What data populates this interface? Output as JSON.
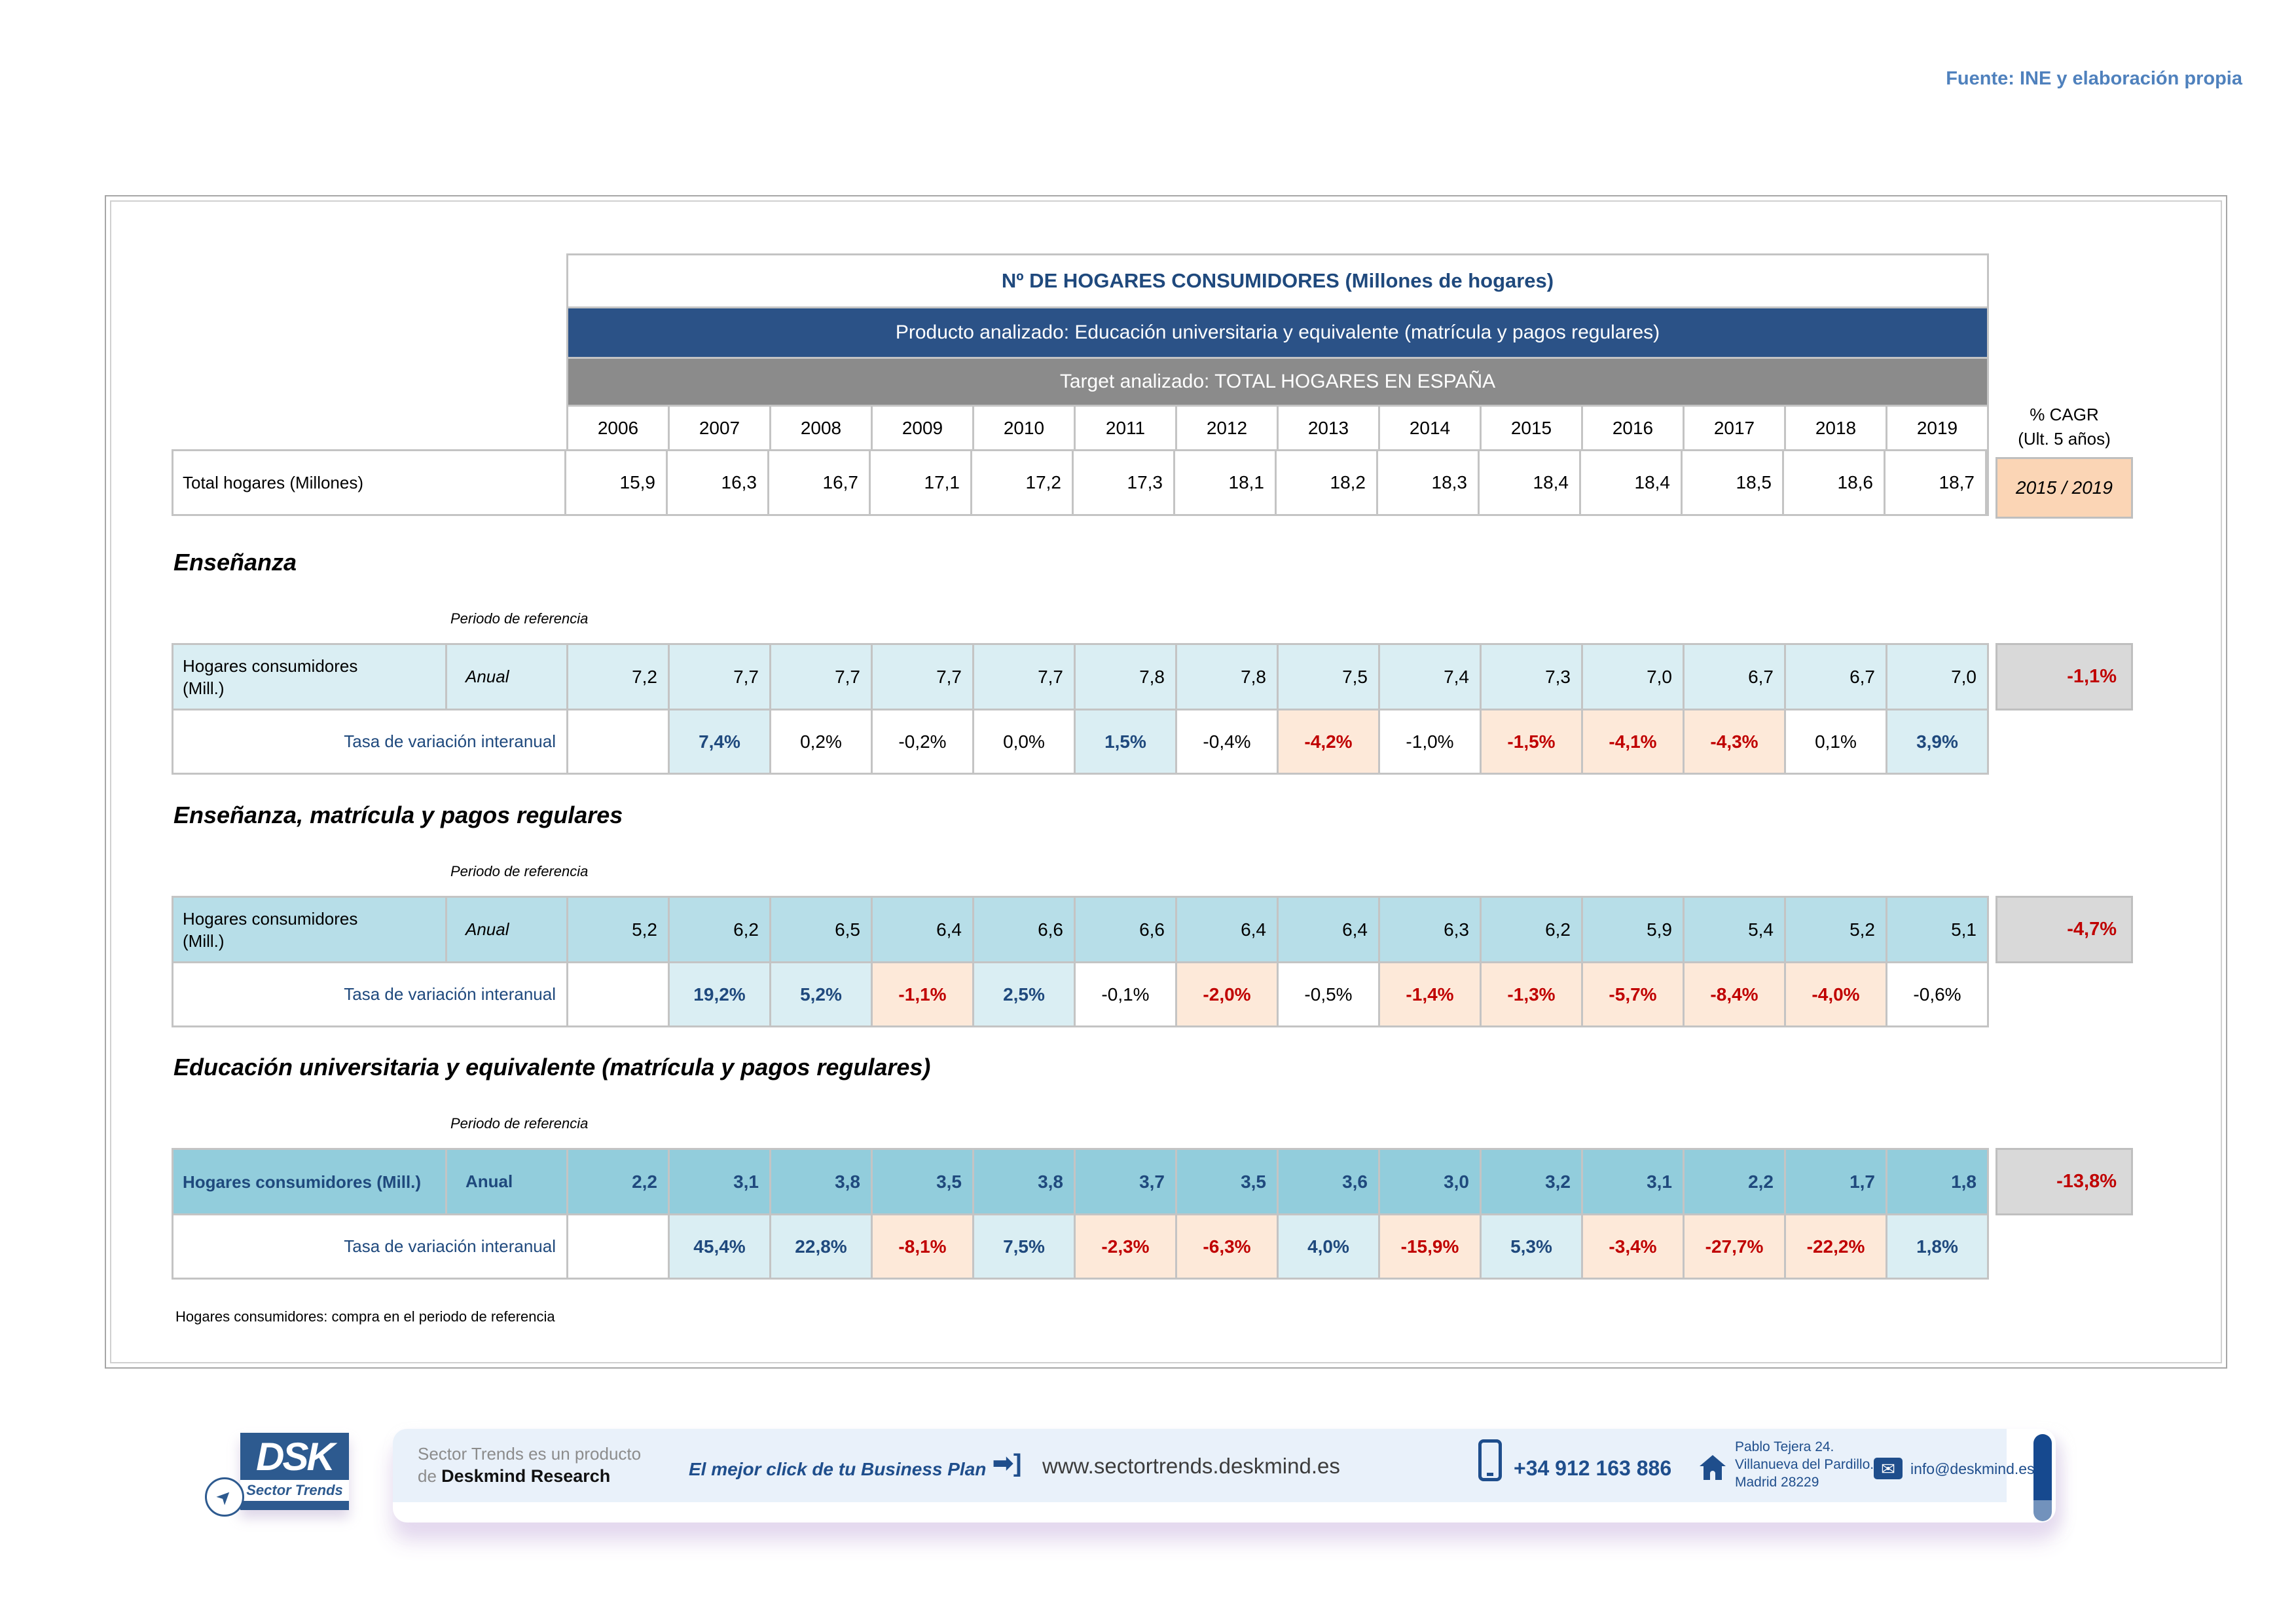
{
  "source_note": "Fuente: INE y elaboración propia",
  "header": {
    "title": "Nº DE HOGARES CONSUMIDORES (Millones de hogares)",
    "product_line": "Producto analizado: Educación universitaria y equivalente  (matrícula y pagos regulares)",
    "target_line": "Target analizado: TOTAL HOGARES EN ESPAÑA",
    "years": [
      "2006",
      "2007",
      "2008",
      "2009",
      "2010",
      "2011",
      "2012",
      "2013",
      "2014",
      "2015",
      "2016",
      "2017",
      "2018",
      "2019"
    ],
    "cagr_label_line1": "% CAGR",
    "cagr_label_line2": "(Ult. 5 años)",
    "cagr_period": "2015 / 2019"
  },
  "total_row": {
    "label": "Total hogares (Millones)",
    "values": [
      "15,9",
      "16,3",
      "16,7",
      "17,1",
      "17,2",
      "17,3",
      "18,1",
      "18,2",
      "18,3",
      "18,4",
      "18,4",
      "18,5",
      "18,6",
      "18,7"
    ]
  },
  "sections": [
    {
      "heading": "Enseñanza",
      "period_label": "Periodo de referencia",
      "row_label_line1": "Hogares consumidores",
      "row_label_line2": "(Mill.)",
      "frequency": "Anual",
      "values": [
        "7,2",
        "7,7",
        "7,7",
        "7,7",
        "7,7",
        "7,8",
        "7,8",
        "7,5",
        "7,4",
        "7,3",
        "7,0",
        "6,7",
        "6,7",
        "7,0"
      ],
      "cagr": "-1,1%",
      "variation_label": "Tasa de variación interanual",
      "variation": [
        {
          "v": "",
          "h": "empty"
        },
        {
          "v": "7,4%",
          "h": "blue"
        },
        {
          "v": "0,2%",
          "h": "plain"
        },
        {
          "v": "-0,2%",
          "h": "plain"
        },
        {
          "v": "0,0%",
          "h": "plain"
        },
        {
          "v": "1,5%",
          "h": "blue"
        },
        {
          "v": "-0,4%",
          "h": "plain"
        },
        {
          "v": "-4,2%",
          "h": "red"
        },
        {
          "v": "-1,0%",
          "h": "plain"
        },
        {
          "v": "-1,5%",
          "h": "red"
        },
        {
          "v": "-4,1%",
          "h": "red"
        },
        {
          "v": "-4,3%",
          "h": "red"
        },
        {
          "v": "0,1%",
          "h": "plain"
        },
        {
          "v": "3,9%",
          "h": "blue"
        }
      ]
    },
    {
      "heading": "Enseñanza, matrícula y pagos regulares",
      "period_label": "Periodo de referencia",
      "row_label_line1": "Hogares consumidores",
      "row_label_line2": "(Mill.)",
      "frequency": "Anual",
      "values": [
        "5,2",
        "6,2",
        "6,5",
        "6,4",
        "6,6",
        "6,6",
        "6,4",
        "6,4",
        "6,3",
        "6,2",
        "5,9",
        "5,4",
        "5,2",
        "5,1"
      ],
      "cagr": "-4,7%",
      "variation_label": "Tasa de variación interanual",
      "variation": [
        {
          "v": "",
          "h": "empty"
        },
        {
          "v": "19,2%",
          "h": "blue"
        },
        {
          "v": "5,2%",
          "h": "blue"
        },
        {
          "v": "-1,1%",
          "h": "red"
        },
        {
          "v": "2,5%",
          "h": "blue"
        },
        {
          "v": "-0,1%",
          "h": "plain"
        },
        {
          "v": "-2,0%",
          "h": "red"
        },
        {
          "v": "-0,5%",
          "h": "plain"
        },
        {
          "v": "-1,4%",
          "h": "red"
        },
        {
          "v": "-1,3%",
          "h": "red"
        },
        {
          "v": "-5,7%",
          "h": "red"
        },
        {
          "v": "-8,4%",
          "h": "red"
        },
        {
          "v": "-4,0%",
          "h": "red"
        },
        {
          "v": "-0,6%",
          "h": "plain"
        }
      ]
    },
    {
      "heading": "Educación universitaria y equivalente  (matrícula y pagos regulares)",
      "period_label": "Periodo de referencia",
      "row_label_line1": "Hogares consumidores (Mill.)",
      "frequency": "Anual",
      "values": [
        "2,2",
        "3,1",
        "3,8",
        "3,5",
        "3,8",
        "3,7",
        "3,5",
        "3,6",
        "3,0",
        "3,2",
        "3,1",
        "2,2",
        "1,7",
        "1,8"
      ],
      "cagr": "-13,8%",
      "variation_label": "Tasa de variación interanual",
      "variation": [
        {
          "v": "",
          "h": "empty"
        },
        {
          "v": "45,4%",
          "h": "blue"
        },
        {
          "v": "22,8%",
          "h": "blue"
        },
        {
          "v": "-8,1%",
          "h": "red"
        },
        {
          "v": "7,5%",
          "h": "blue"
        },
        {
          "v": "-2,3%",
          "h": "red"
        },
        {
          "v": "-6,3%",
          "h": "red"
        },
        {
          "v": "4,0%",
          "h": "blue"
        },
        {
          "v": "-15,9%",
          "h": "red"
        },
        {
          "v": "5,3%",
          "h": "blue"
        },
        {
          "v": "-3,4%",
          "h": "red"
        },
        {
          "v": "-27,7%",
          "h": "red"
        },
        {
          "v": "-22,2%",
          "h": "red"
        },
        {
          "v": "1,8%",
          "h": "blue"
        }
      ]
    }
  ],
  "footnote": "Hogares consumidores: compra en el periodo de referencia",
  "footer": {
    "logo_main": "DSK",
    "logo_sub": "Sector Trends",
    "producer_line1": "Sector Trends es un producto",
    "producer_line2_prefix": "de ",
    "producer_line2_name": "Deskmind Research",
    "slogan": "El mejor click de tu Business Plan",
    "go_icon": "➡]",
    "website": "www.sectortrends.deskmind.es",
    "phone": "+34 912 163 886",
    "address_line1": "Pablo Tejera 24.",
    "address_line2": "Villanueva del Pardillo.",
    "address_line3": "Madrid 28229",
    "email": "info@deskmind.es",
    "mail_glyph": "✉",
    "arrow_glyph": "➤"
  },
  "colors": {
    "header_bar_blue": "#2B5287",
    "header_bar_gray": "#8B8B8B",
    "accent_navy": "#1F497D",
    "tint_light": "#DAEEF3",
    "tint_medium": "#B7DEE8",
    "tint_dark": "#92CDDC",
    "highlight_up_bg": "#DAEEF3",
    "highlight_down_bg": "#FDE9D9",
    "negative_red": "#C00000",
    "cagr_gray_bg": "#D9D9D9",
    "cagr_period_bg": "#FBD5B5",
    "source_blue": "#4F81BD",
    "footer_strip": "#E9F1FA",
    "footer_navy": "#1F4E8C"
  }
}
